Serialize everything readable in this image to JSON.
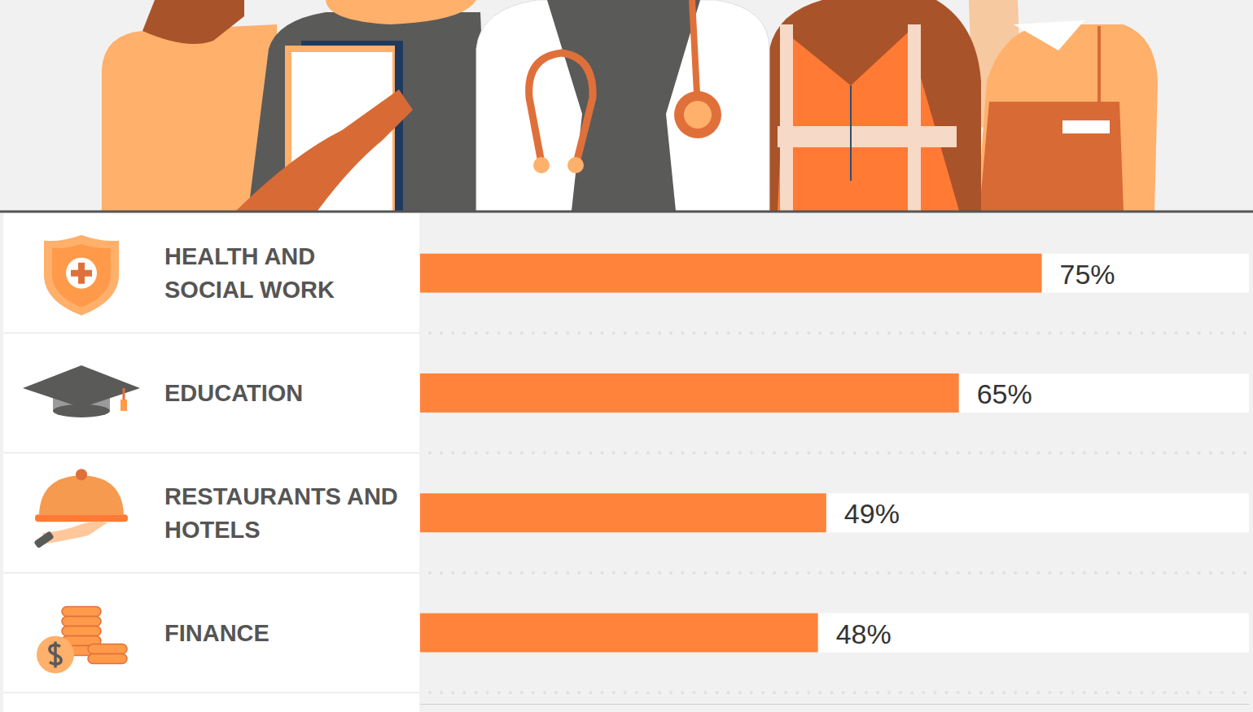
{
  "chart_data": {
    "type": "bar",
    "orientation": "horizontal",
    "categories": [
      "HEALTH AND SOCIAL WORK",
      "EDUCATION",
      "RESTAURANTS AND HOTELS",
      "FINANCE"
    ],
    "values": [
      75,
      65,
      49,
      48
    ],
    "value_labels": [
      "75%",
      "65%",
      "49%",
      "48%"
    ],
    "data_labels": true,
    "color": "#ff833a",
    "xlim": [
      0,
      100
    ],
    "tick_labels": false,
    "grid": false
  }
}
